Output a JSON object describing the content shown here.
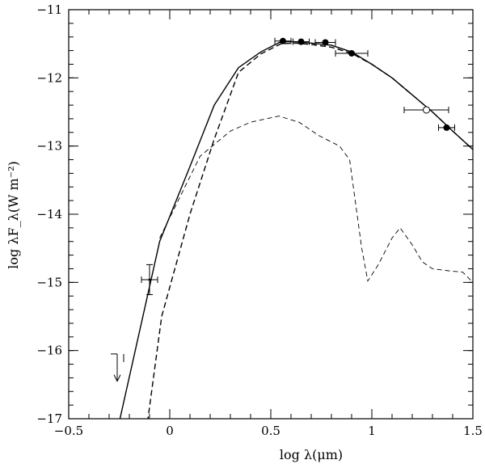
{
  "chart_data": {
    "type": "scatter",
    "xlabel": "log λ(μm)",
    "ylabel": "log λF_λ(W m⁻²)",
    "xlim": [
      -0.5,
      1.5
    ],
    "ylim": [
      -17,
      -11
    ],
    "grid": false,
    "x_ticks_major": [
      -0.5,
      0,
      0.5,
      1,
      1.5
    ],
    "x_tick_labels": [
      "−0.5",
      "0",
      "0.5",
      "1",
      "1.5"
    ],
    "y_ticks_major": [
      -17,
      -16,
      -15,
      -14,
      -13,
      -12,
      -11
    ],
    "y_tick_labels": [
      "−17",
      "−16",
      "−15",
      "−14",
      "−13",
      "−12",
      "−11"
    ],
    "series": [
      {
        "style": "solid",
        "points": [
          [
            -0.25,
            -17.05
          ],
          [
            -0.05,
            -14.4
          ],
          [
            0.1,
            -13.3
          ],
          [
            0.22,
            -12.4
          ],
          [
            0.34,
            -11.85
          ],
          [
            0.45,
            -11.62
          ],
          [
            0.55,
            -11.47
          ],
          [
            0.62,
            -11.47
          ],
          [
            0.7,
            -11.49
          ],
          [
            0.8,
            -11.52
          ],
          [
            0.9,
            -11.62
          ],
          [
            1.0,
            -11.8
          ],
          [
            1.1,
            -12.0
          ],
          [
            1.2,
            -12.25
          ],
          [
            1.3,
            -12.5
          ],
          [
            1.4,
            -12.78
          ],
          [
            1.5,
            -13.05
          ]
        ]
      },
      {
        "style": "dashed",
        "points": [
          [
            -0.11,
            -17.05
          ],
          [
            -0.04,
            -15.5
          ],
          [
            0.1,
            -14.0
          ],
          [
            0.22,
            -12.9
          ],
          [
            0.34,
            -11.92
          ],
          [
            0.45,
            -11.65
          ],
          [
            0.55,
            -11.5
          ],
          [
            0.62,
            -11.49
          ],
          [
            0.7,
            -11.51
          ],
          [
            0.8,
            -11.55
          ],
          [
            0.9,
            -11.64
          ],
          [
            1.0,
            -11.8
          ],
          [
            1.1,
            -12.0
          ],
          [
            1.2,
            -12.25
          ],
          [
            1.3,
            -12.5
          ],
          [
            1.4,
            -12.78
          ],
          [
            1.5,
            -13.05
          ]
        ]
      },
      {
        "style": "dashed-thin",
        "points": [
          [
            -0.05,
            -14.35
          ],
          [
            0.05,
            -13.75
          ],
          [
            0.15,
            -13.15
          ],
          [
            0.3,
            -12.78
          ],
          [
            0.4,
            -12.65
          ],
          [
            0.54,
            -12.56
          ],
          [
            0.64,
            -12.65
          ],
          [
            0.74,
            -12.85
          ],
          [
            0.84,
            -13.0
          ],
          [
            0.89,
            -13.2
          ],
          [
            0.95,
            -14.5
          ],
          [
            0.98,
            -14.98
          ],
          [
            1.03,
            -14.75
          ],
          [
            1.1,
            -14.35
          ],
          [
            1.14,
            -14.2
          ],
          [
            1.2,
            -14.45
          ],
          [
            1.25,
            -14.7
          ],
          [
            1.3,
            -14.8
          ],
          [
            1.38,
            -14.83
          ],
          [
            1.45,
            -14.85
          ],
          [
            1.5,
            -15.0
          ]
        ]
      }
    ],
    "data_points": [
      {
        "x": 0.56,
        "y": -11.46,
        "xerr": 0.04,
        "yerr": 0,
        "marker": "filled"
      },
      {
        "x": 0.65,
        "y": -11.47,
        "xerr": 0.04,
        "yerr": 0,
        "marker": "filled"
      },
      {
        "x": 0.77,
        "y": -11.48,
        "xerr": 0.05,
        "yerr": 0,
        "marker": "filled"
      },
      {
        "x": 0.9,
        "y": -11.64,
        "xerr": 0.08,
        "yerr": 0,
        "marker": "filled"
      },
      {
        "x": 1.37,
        "y": -12.73,
        "xerr": 0.04,
        "yerr": 0,
        "marker": "filled"
      },
      {
        "x": 1.27,
        "y": -12.47,
        "xerr": 0.11,
        "yerr": 0,
        "marker": "open"
      },
      {
        "x": -0.1,
        "y": -14.96,
        "xerr": 0.04,
        "yerr": 0.22,
        "marker": "cross"
      }
    ],
    "upper_limits": [
      {
        "x": -0.26,
        "y": -16.05,
        "to_y": -16.45
      }
    ]
  }
}
